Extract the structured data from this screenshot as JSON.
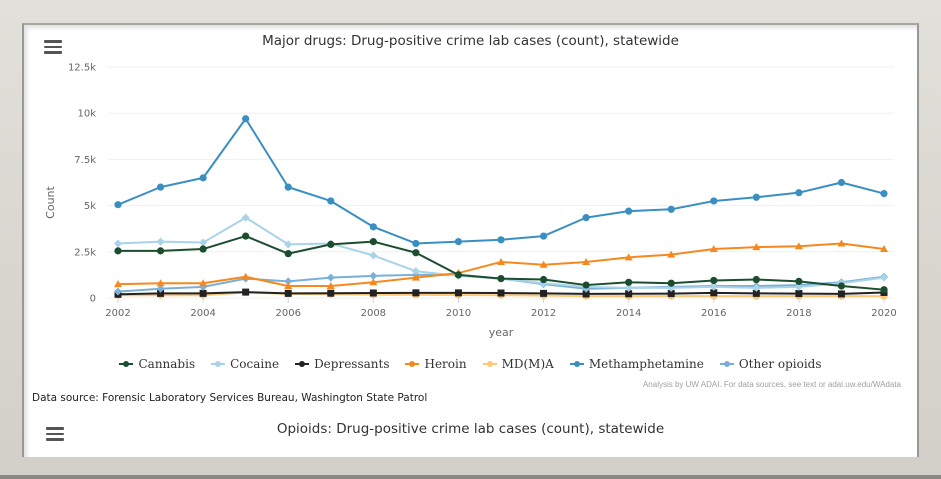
{
  "chart_data": {
    "type": "line",
    "title": "Major drugs: Drug-positive crime lab cases (count), statewide",
    "xlabel": "year",
    "ylabel": "Count",
    "x": [
      2002,
      2003,
      2004,
      2005,
      2006,
      2007,
      2008,
      2009,
      2010,
      2011,
      2012,
      2013,
      2014,
      2015,
      2016,
      2017,
      2018,
      2019,
      2020
    ],
    "xticks": [
      "2002",
      "2004",
      "2006",
      "2008",
      "2010",
      "2012",
      "2014",
      "2016",
      "2018",
      "2020"
    ],
    "yticks": [
      "0",
      "2.5k",
      "5k",
      "7.5k",
      "10k",
      "12.5k"
    ],
    "ylim": [
      0,
      12500
    ],
    "grid": true,
    "legend_position": "bottom-center",
    "series": [
      {
        "name": "Cannabis",
        "color": "#1b4d2e",
        "marker": "circle",
        "values": [
          2550,
          2550,
          2650,
          3350,
          2400,
          2900,
          3050,
          2450,
          1250,
          1050,
          1000,
          700,
          850,
          800,
          950,
          1000,
          900,
          650,
          450
        ]
      },
      {
        "name": "Cocaine",
        "color": "#a9d3e8",
        "marker": "diamond",
        "values": [
          2950,
          3050,
          3000,
          4350,
          2900,
          2950,
          2300,
          1450,
          1200,
          1050,
          800,
          600,
          550,
          550,
          600,
          550,
          600,
          800,
          1100
        ]
      },
      {
        "name": "Depressants",
        "color": "#222222",
        "marker": "square",
        "values": [
          200,
          250,
          250,
          320,
          250,
          260,
          270,
          280,
          280,
          270,
          250,
          220,
          230,
          240,
          280,
          250,
          240,
          220,
          300
        ]
      },
      {
        "name": "Heroin",
        "color": "#f5891f",
        "marker": "triangle",
        "values": [
          750,
          800,
          800,
          1150,
          650,
          650,
          850,
          1100,
          1350,
          1950,
          1800,
          1950,
          2200,
          2350,
          2650,
          2750,
          2800,
          2950,
          2650
        ]
      },
      {
        "name": "MD(M)A",
        "color": "#fdc877",
        "marker": "circle",
        "values": [
          150,
          150,
          150,
          300,
          220,
          200,
          180,
          170,
          160,
          150,
          130,
          100,
          100,
          100,
          100,
          100,
          100,
          100,
          100
        ]
      },
      {
        "name": "Methamphetamine",
        "color": "#3a8fc2",
        "marker": "circle",
        "values": [
          5050,
          6000,
          6500,
          9700,
          6000,
          5250,
          3850,
          2950,
          3050,
          3150,
          3350,
          4350,
          4700,
          4800,
          5250,
          5450,
          5700,
          6250,
          5650
        ]
      },
      {
        "name": "Other opioids",
        "color": "#7ab0d8",
        "marker": "diamond",
        "values": [
          350,
          500,
          600,
          1050,
          900,
          1100,
          1200,
          1250,
          1250,
          1050,
          750,
          500,
          550,
          600,
          650,
          650,
          700,
          850,
          1150
        ]
      }
    ]
  },
  "ui": {
    "menu_icon": "hamburger-menu-icon",
    "credit": "Analysis by UW ADAI. For data sources, see text or adai.uw.edu/WAdata",
    "source": "Data source: Forensic Laboratory Services Bureau, Washington State Patrol",
    "chart2_title": "Opioids: Drug-positive crime lab cases (count), statewide"
  }
}
